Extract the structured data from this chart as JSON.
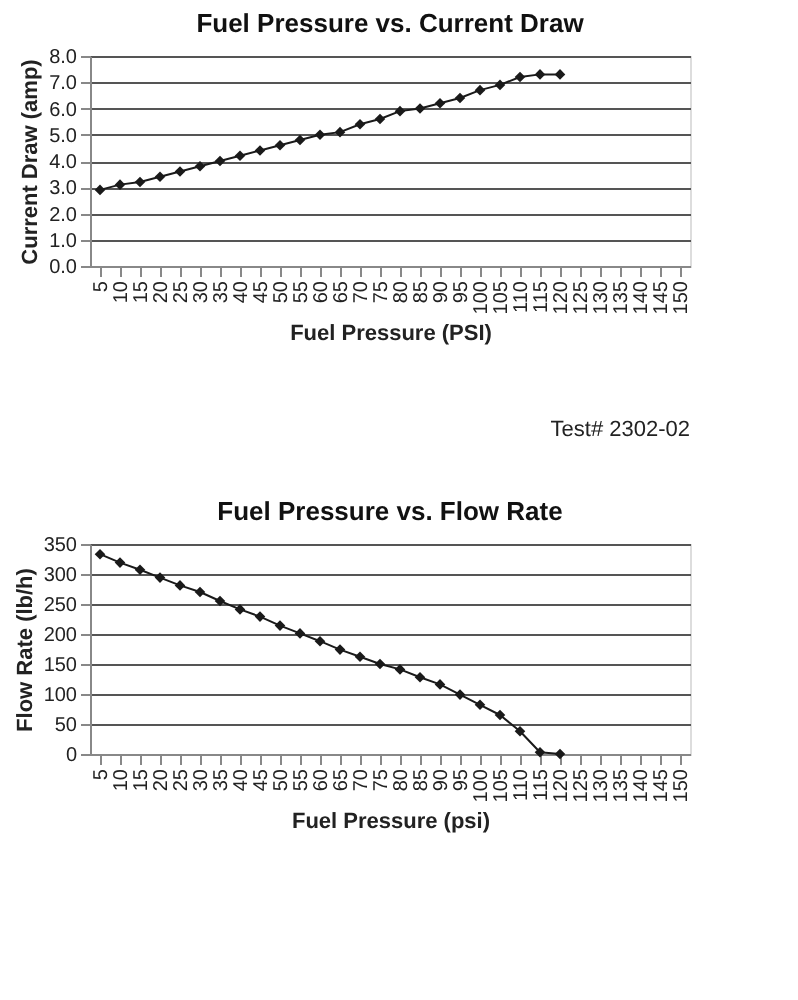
{
  "chart_data": [
    {
      "type": "line",
      "title": "Fuel Pressure vs. Current Draw",
      "xlabel": "Fuel Pressure (PSI)",
      "ylabel": "Current Draw (amp)",
      "categories": [
        "5",
        "10",
        "15",
        "20",
        "25",
        "30",
        "35",
        "40",
        "45",
        "50",
        "55",
        "60",
        "65",
        "70",
        "75",
        "80",
        "85",
        "90",
        "95",
        "100",
        "105",
        "110",
        "115",
        "120",
        "125",
        "130",
        "135",
        "140",
        "145",
        "150"
      ],
      "series": [
        {
          "color": "#1a1a1a",
          "values": [
            2.9,
            3.1,
            3.2,
            3.4,
            3.6,
            3.8,
            4.0,
            4.2,
            4.4,
            4.6,
            4.8,
            5.0,
            5.1,
            5.4,
            5.6,
            5.9,
            6.0,
            6.2,
            6.4,
            6.7,
            6.9,
            7.2,
            7.3,
            7.3,
            null,
            null,
            null,
            null,
            null,
            null
          ]
        }
      ],
      "ylim": [
        0,
        8
      ],
      "yticks": [
        {
          "value": 0,
          "label": "0.0"
        },
        {
          "value": 1,
          "label": "1.0"
        },
        {
          "value": 2,
          "label": "2.0"
        },
        {
          "value": 3,
          "label": "3.0"
        },
        {
          "value": 4,
          "label": "4.0"
        },
        {
          "value": 5,
          "label": "5.0"
        },
        {
          "value": 6,
          "label": "6.0"
        },
        {
          "value": 7,
          "label": "7.0"
        },
        {
          "value": 8,
          "label": "8.0"
        }
      ],
      "grid": "y",
      "marker": "diamond",
      "line_style": "solid",
      "annotations": [
        "Test# 2302-02"
      ]
    },
    {
      "type": "line",
      "title": "Fuel Pressure vs. Flow Rate",
      "xlabel": "Fuel Pressure (psi)",
      "ylabel": "Flow Rate (lb/h)",
      "categories": [
        "5",
        "10",
        "15",
        "20",
        "25",
        "30",
        "35",
        "40",
        "45",
        "50",
        "55",
        "60",
        "65",
        "70",
        "75",
        "80",
        "85",
        "90",
        "95",
        "100",
        "105",
        "110",
        "115",
        "120",
        "125",
        "130",
        "135",
        "140",
        "145",
        "150"
      ],
      "series": [
        {
          "color": "#1a1a1a",
          "values": [
            333,
            319,
            307,
            294,
            281,
            270,
            255,
            241,
            229,
            214,
            201,
            188,
            174,
            162,
            150,
            141,
            128,
            116,
            99,
            82,
            65,
            38,
            3,
            0,
            null,
            null,
            null,
            null,
            null,
            null
          ]
        }
      ],
      "ylim": [
        0,
        350
      ],
      "yticks": [
        0,
        50,
        100,
        150,
        200,
        250,
        300,
        350
      ],
      "grid": "y",
      "marker": "diamond",
      "line_style": "solid"
    }
  ]
}
